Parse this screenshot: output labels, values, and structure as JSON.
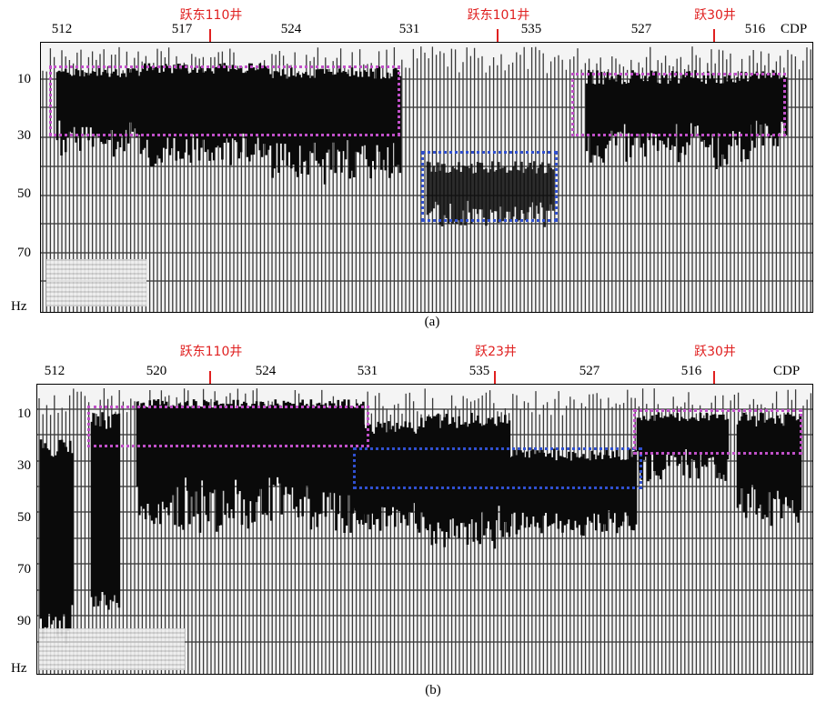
{
  "figure": {
    "panels": [
      {
        "id": "a",
        "caption": "(a)",
        "cdp_axis_name": "CDP",
        "cdp_labels": [
          "512",
          "517",
          "524",
          "531",
          "535",
          "527",
          "516"
        ],
        "wells": [
          "跃东110井",
          "跃东101井",
          "跃30井"
        ],
        "freq_labels": [
          "10",
          "30",
          "50",
          "70"
        ],
        "freq_unit": "Hz"
      },
      {
        "id": "b",
        "caption": "(b)",
        "cdp_axis_name": "CDP",
        "cdp_labels": [
          "512",
          "520",
          "524",
          "531",
          "535",
          "527",
          "516"
        ],
        "wells": [
          "跃东110井",
          "跃23井",
          "跃30井"
        ],
        "freq_labels": [
          "10",
          "30",
          "50",
          "70",
          "90"
        ],
        "freq_unit": "Hz"
      }
    ],
    "colors": {
      "well_marker": "#e02020",
      "highlight_magenta": "#c050c8",
      "highlight_blue": "#3050d0"
    }
  }
}
